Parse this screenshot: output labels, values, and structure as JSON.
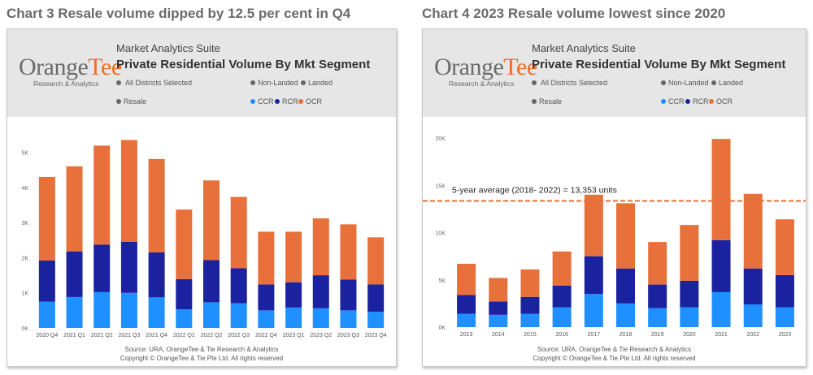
{
  "page": {
    "chart3_heading": "Chart 3 Resale volume dipped by 12.5 per cent in Q4",
    "chart4_heading": "Chart 4 2023 Resale volume lowest since 2020"
  },
  "report": {
    "suite": "Market Analytics Suite",
    "title": "Private Residential Volume By Mkt Segment",
    "logo_main": "OrangeTee",
    "logo_sub": "Research & Analytics",
    "districts": "All Districts Selected",
    "property_filters": [
      "Non-Landed",
      "Landed"
    ],
    "sale_type": "Resale",
    "source_line1": "Source: URA, OrangeTee & Tie Research & Analytics",
    "source_line2": "Copyright © OrangeTee & Tie Pte Ltd. All rights reserved"
  },
  "colors": {
    "CCR": "#1e90ff",
    "RCR": "#1a22a0",
    "OCR": "#e8703a",
    "filter_dot": "#666666",
    "average_line": "#e8703a"
  },
  "chart_data": [
    {
      "type": "bar",
      "stacked": true,
      "title": "Chart 3 Resale volume dipped by 12.5 per cent in Q4",
      "categories": [
        "2020 Q4",
        "2021 Q1",
        "2021 Q2",
        "2021 Q3",
        "2021 Q4",
        "2022 Q1",
        "2022 Q2",
        "2022 Q3",
        "2022 Q4",
        "2023 Q1",
        "2023 Q2",
        "2023 Q3",
        "2023 Q4"
      ],
      "series": [
        {
          "name": "CCR",
          "values": [
            750,
            880,
            1020,
            1000,
            870,
            530,
            730,
            700,
            500,
            580,
            560,
            500,
            460
          ]
        },
        {
          "name": "RCR",
          "values": [
            1170,
            1300,
            1350,
            1450,
            1280,
            860,
            1200,
            1000,
            740,
            720,
            940,
            880,
            780
          ]
        },
        {
          "name": "OCR",
          "values": [
            2380,
            2420,
            2820,
            2900,
            2660,
            1980,
            2270,
            2030,
            1500,
            1440,
            1620,
            1570,
            1340
          ]
        }
      ],
      "yticks": [
        0,
        1000,
        2000,
        3000,
        4000,
        5000
      ],
      "ytick_labels": [
        "0K",
        "1K",
        "2K",
        "3K",
        "4K",
        "5K"
      ],
      "ylim": [
        0,
        5500
      ],
      "grid": false,
      "legend": "top-right"
    },
    {
      "type": "bar",
      "stacked": true,
      "title": "Chart 4 2023 Resale volume lowest since 2020",
      "categories": [
        "2013",
        "2014",
        "2015",
        "2016",
        "2017",
        "2018",
        "2019",
        "2020",
        "2021",
        "2022",
        "2023"
      ],
      "series": [
        {
          "name": "CCR",
          "values": [
            1400,
            1300,
            1400,
            2100,
            3500,
            2500,
            2000,
            2100,
            3700,
            2400,
            2100
          ]
        },
        {
          "name": "RCR",
          "values": [
            2000,
            1400,
            1800,
            2300,
            4000,
            3700,
            2500,
            2800,
            5500,
            3800,
            3400
          ]
        },
        {
          "name": "OCR",
          "values": [
            3300,
            2500,
            2900,
            3600,
            6500,
            6900,
            4500,
            5900,
            10700,
            7900,
            5900
          ]
        }
      ],
      "yticks": [
        0,
        5000,
        10000,
        15000,
        20000
      ],
      "ytick_labels": [
        "0K",
        "5K",
        "10K",
        "15K",
        "20K"
      ],
      "ylim": [
        0,
        20000
      ],
      "grid": false,
      "legend": "top-right",
      "reference_line": {
        "value": 13353,
        "label": "5-year average (2018- 2022) = 13,353 units"
      }
    }
  ]
}
